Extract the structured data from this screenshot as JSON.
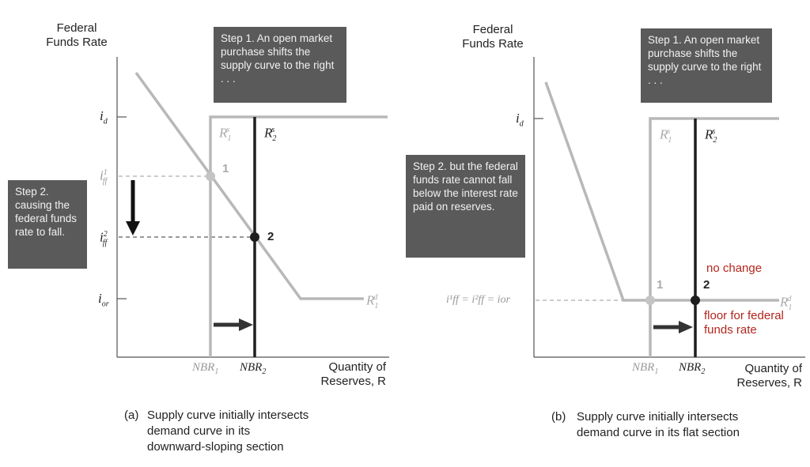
{
  "panel_a": {
    "y_axis_title": [
      "Federal",
      "Funds Rate"
    ],
    "x_axis_title": [
      "Quantity of",
      "Reserves, R"
    ],
    "step1": "Step 1. An open market purchase shifts the supply curve to the right . . .",
    "step2": "Step 2. causing the federal funds rate to fall.",
    "tick_id": "i",
    "tick_id_sub": "d",
    "tick_iff1": "i",
    "tick_iff1_sup": "1",
    "tick_iff1_sub": "ff",
    "tick_iff2": "i",
    "tick_iff2_sup": "2",
    "tick_iff2_sub": "ff",
    "tick_ior": "i",
    "tick_ior_sub": "or",
    "r1s": "R",
    "r1s_sub": "1",
    "r1s_sup": "s",
    "r2s": "R",
    "r2s_sub": "2",
    "r2s_sup": "s",
    "r1d": "R",
    "r1d_sub": "1",
    "r1d_sup": "d",
    "nbr1": "NBR",
    "nbr1_sub": "1",
    "nbr2": "NBR",
    "nbr2_sub": "2",
    "point1": "1",
    "point2": "2",
    "caption_prefix": "(a)",
    "caption": [
      "Supply curve initially intersects",
      "demand curve in its",
      "downward-sloping section"
    ]
  },
  "panel_b": {
    "y_axis_title": [
      "Federal",
      "Funds Rate"
    ],
    "x_axis_title": [
      "Quantity of",
      "Reserves, R"
    ],
    "step1": "Step 1. An open market purchase shifts the supply curve to the right . . .",
    "step2": "Step 2. but the federal funds rate cannot fall below the interest rate paid on reserves.",
    "tick_id": "i",
    "tick_id_sub": "d",
    "tick_eq": "i¹ff = i²ff = ior",
    "r1s": "R",
    "r1s_sub": "1",
    "r1s_sup": "s",
    "r2s": "R",
    "r2s_sub": "2",
    "r2s_sup": "s",
    "r1d": "R",
    "r1d_sub": "1",
    "r1d_sup": "d",
    "nbr1": "NBR",
    "nbr1_sub": "1",
    "nbr2": "NBR",
    "nbr2_sub": "2",
    "point1": "1",
    "point2": "2",
    "no_change": "no change",
    "floor": [
      "floor for federal",
      "funds rate"
    ],
    "caption_prefix": "(b)",
    "caption": [
      "Supply curve initially intersects",
      "demand curve in its flat section"
    ]
  },
  "colors": {
    "box": "#5a5a5a",
    "light_curve": "#b8b8b8",
    "dark_curve": "#1e1e1e",
    "red": "#b3261e"
  }
}
